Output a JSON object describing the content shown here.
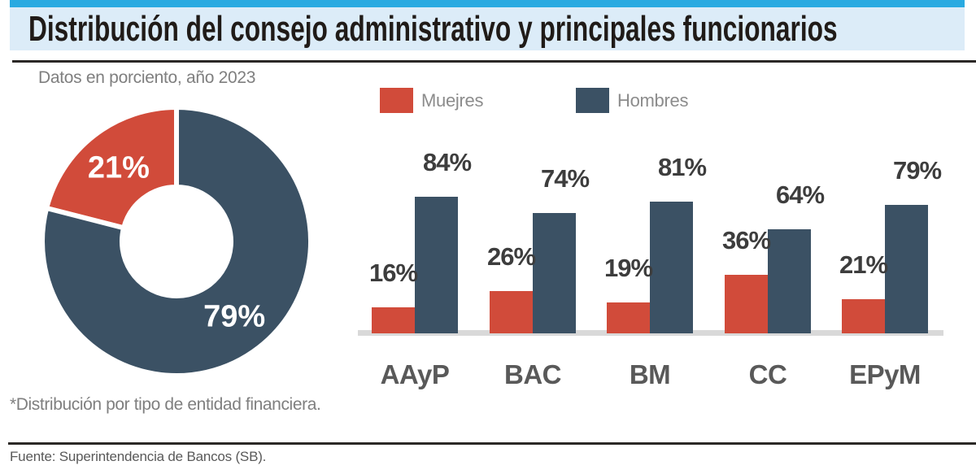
{
  "header": {
    "title": "Distribución del consejo administrativo y principales funcionarios"
  },
  "subtitle": "Datos en porciento, año 2023",
  "footnote": "*Distribución por tipo de entidad financiera.",
  "source": "Fuente: Superintendencia de Bancos (SB).",
  "legend": {
    "items": [
      {
        "label": "Muejres",
        "color": "#d14b3a"
      },
      {
        "label": "Hombres",
        "color": "#3b5164"
      }
    ]
  },
  "colors": {
    "mujeres": "#d14b3a",
    "hombres": "#3b5164",
    "header_accent": "#29aae1",
    "header_background": "#dcecf8",
    "baseline": "#d9d9d9",
    "divider": "#2b2826"
  },
  "chart_data": [
    {
      "type": "pie",
      "subtype": "donut",
      "title": "Distribución del consejo administrativo y principales funcionarios",
      "subtitle": "Datos en porciento, año 2023",
      "slices": [
        {
          "label": "Muejres",
          "value": 21,
          "display": "21%",
          "color": "#d14b3a"
        },
        {
          "label": "Hombres",
          "value": 79,
          "display": "79%",
          "color": "#3b5164"
        }
      ],
      "legend_position": "none",
      "grid": false
    },
    {
      "type": "bar",
      "categories": [
        "AAyP",
        "BAC",
        "BM",
        "CC",
        "EPyM"
      ],
      "series": [
        {
          "name": "Muejres",
          "color": "#d14b3a",
          "values": [
            16,
            26,
            19,
            36,
            21
          ]
        },
        {
          "name": "Hombres",
          "color": "#3b5164",
          "values": [
            84,
            74,
            81,
            64,
            79
          ]
        }
      ],
      "unit": "%",
      "ylim": [
        0,
        100
      ],
      "xlabel": "",
      "ylabel": "",
      "legend_position": "top",
      "grid": false
    }
  ]
}
